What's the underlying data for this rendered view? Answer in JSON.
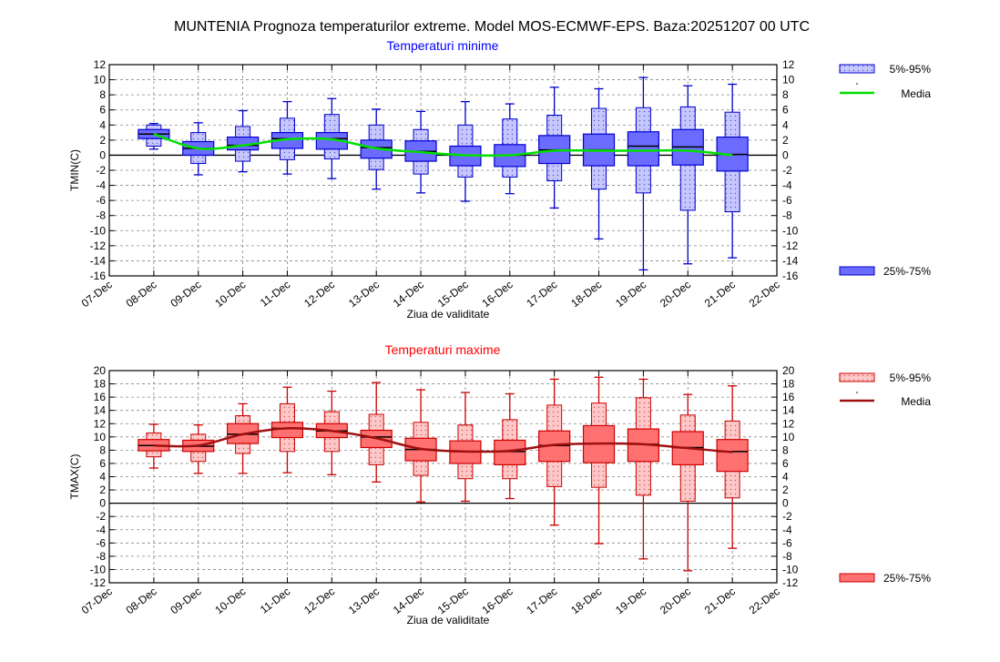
{
  "title": "MUNTENIA  Prognoza temperaturilor extreme.  Model MOS-ECMWF-EPS. Baza:20251207 00 UTC",
  "x_tick_labels": [
    "07-Dec",
    "08-Dec",
    "09-Dec",
    "10-Dec",
    "11-Dec",
    "12-Dec",
    "13-Dec",
    "14-Dec",
    "15-Dec",
    "16-Dec",
    "17-Dec",
    "18-Dec",
    "19-Dec",
    "20-Dec",
    "21-Dec",
    "22-Dec"
  ],
  "chart_data": [
    {
      "type": "box",
      "title": "Temperaturi minime",
      "xlabel": "Ziua de validitate",
      "ylabel": "TMIN(C)",
      "ylim": [
        -16,
        12
      ],
      "ytick_step": 2,
      "grid": true,
      "colors": {
        "title": "#0000ff",
        "box_fill": "#6b6bff",
        "box_stroke": "#0000cc",
        "whisker_box_fill": "#c7c7ff",
        "mean": "#00e000"
      },
      "legend": {
        "placement": "right",
        "whisker_label": "5%-95%",
        "mean_label": "Media",
        "box_label": "25%-75%"
      },
      "categories": [
        "08-Dec",
        "09-Dec",
        "10-Dec",
        "11-Dec",
        "12-Dec",
        "13-Dec",
        "14-Dec",
        "15-Dec",
        "16-Dec",
        "17-Dec",
        "18-Dec",
        "19-Dec",
        "20-Dec",
        "21-Dec"
      ],
      "p5": [
        0.8,
        -2.6,
        -2.2,
        -2.5,
        -3.1,
        -4.5,
        -5.0,
        -6.1,
        -5.1,
        -7.0,
        -11.1,
        -15.2,
        -14.4,
        -13.6
      ],
      "p25": [
        2.2,
        0.0,
        0.7,
        0.9,
        0.8,
        -0.4,
        -0.8,
        -1.4,
        -1.5,
        -1.1,
        -1.4,
        -1.4,
        -1.3,
        -2.1
      ],
      "p75": [
        3.4,
        1.8,
        2.4,
        3.0,
        3.0,
        2.0,
        1.9,
        1.2,
        1.4,
        2.6,
        2.8,
        3.1,
        3.4,
        2.4
      ],
      "p95": [
        4.2,
        4.3,
        5.9,
        7.1,
        7.5,
        6.1,
        5.8,
        7.1,
        6.8,
        9.0,
        8.8,
        10.3,
        9.2,
        9.4
      ],
      "whisker_box_low": [
        1.2,
        -1.1,
        -0.8,
        -0.6,
        -0.5,
        -1.9,
        -2.5,
        -2.9,
        -2.9,
        -3.4,
        -4.5,
        -5.0,
        -7.3,
        -7.5
      ],
      "whisker_box_high": [
        4.0,
        3.0,
        3.8,
        4.9,
        5.4,
        4.0,
        3.4,
        4.0,
        4.8,
        5.3,
        6.2,
        6.3,
        6.4,
        5.7
      ],
      "median": [
        2.8,
        0.9,
        1.3,
        2.2,
        2.2,
        1.0,
        0.5,
        0.0,
        0.0,
        0.7,
        0.7,
        1.2,
        1.1,
        0.1
      ],
      "mean": [
        2.8,
        0.9,
        1.3,
        2.1,
        2.1,
        0.9,
        0.4,
        0.0,
        0.0,
        0.6,
        0.6,
        0.6,
        0.6,
        0.0
      ]
    },
    {
      "type": "box",
      "title": "Temperaturi maxime",
      "xlabel": "Ziua de validitate",
      "ylabel": "TMAX(C)",
      "ylim": [
        -12,
        20
      ],
      "ytick_step": 2,
      "grid": true,
      "colors": {
        "title": "#ff0000",
        "box_fill": "#ff7070",
        "box_stroke": "#cc0000",
        "whisker_box_fill": "#ffc8c8",
        "mean": "#a01010"
      },
      "legend": {
        "placement": "right",
        "whisker_label": "5%-95%",
        "mean_label": "Media",
        "box_label": "25%-75%"
      },
      "categories": [
        "08-Dec",
        "09-Dec",
        "10-Dec",
        "11-Dec",
        "12-Dec",
        "13-Dec",
        "14-Dec",
        "15-Dec",
        "16-Dec",
        "17-Dec",
        "18-Dec",
        "19-Dec",
        "20-Dec",
        "21-Dec"
      ],
      "p5": [
        5.3,
        4.5,
        4.5,
        4.6,
        4.3,
        3.2,
        0.2,
        0.3,
        0.7,
        -3.3,
        -6.1,
        -8.4,
        -10.2,
        -6.8
      ],
      "p25": [
        7.9,
        7.8,
        9.0,
        9.9,
        9.9,
        8.4,
        6.4,
        6.0,
        5.8,
        6.3,
        6.1,
        6.3,
        5.8,
        4.8
      ],
      "p75": [
        9.6,
        9.5,
        12.0,
        12.2,
        12.0,
        11.0,
        9.8,
        9.4,
        9.5,
        10.9,
        11.7,
        11.2,
        10.8,
        9.6
      ],
      "p95": [
        11.9,
        11.8,
        15.0,
        17.5,
        16.9,
        18.2,
        17.1,
        16.7,
        16.5,
        18.7,
        19.0,
        18.7,
        16.4,
        17.7
      ],
      "whisker_box_low": [
        7.0,
        6.3,
        7.5,
        7.8,
        7.8,
        5.8,
        4.2,
        3.7,
        3.7,
        2.5,
        2.4,
        1.2,
        0.3,
        0.8
      ],
      "whisker_box_high": [
        10.6,
        10.4,
        13.2,
        15.0,
        13.8,
        13.4,
        12.2,
        11.8,
        12.6,
        14.8,
        15.1,
        15.9,
        13.3,
        12.4
      ],
      "median": [
        8.7,
        8.6,
        10.4,
        11.3,
        10.9,
        10.0,
        8.1,
        7.8,
        7.8,
        8.7,
        9.0,
        8.9,
        8.4,
        7.8
      ],
      "mean": [
        8.7,
        8.7,
        10.4,
        11.3,
        10.9,
        9.8,
        8.2,
        7.8,
        7.9,
        8.8,
        9.0,
        8.9,
        8.3,
        7.7
      ]
    }
  ]
}
